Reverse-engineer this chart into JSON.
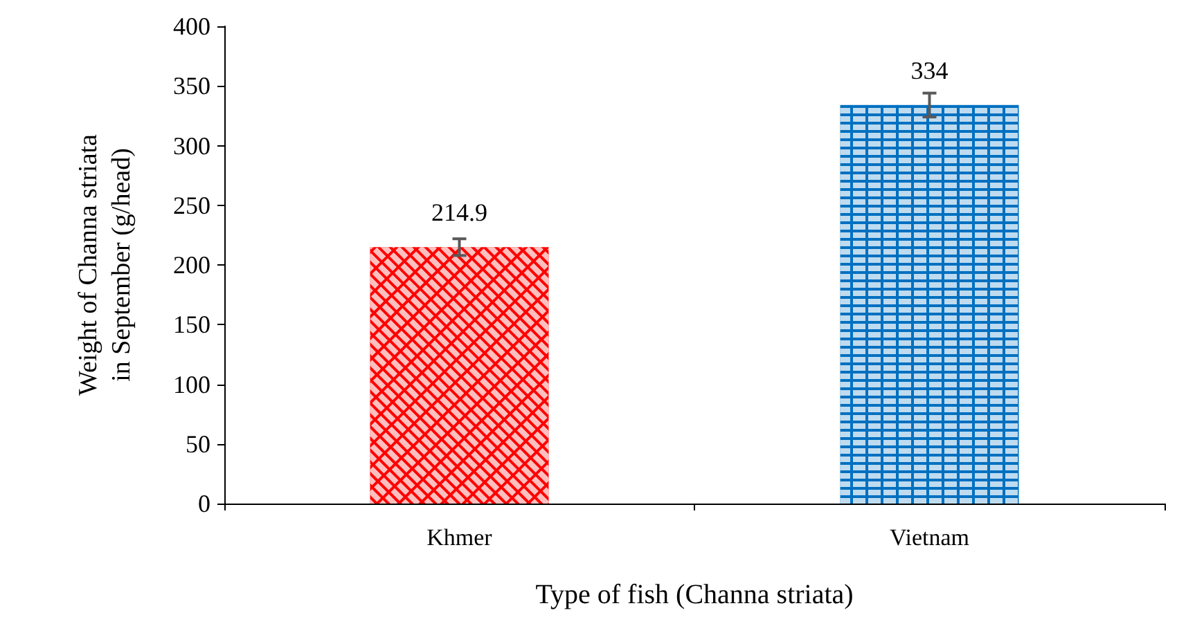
{
  "chart_data": {
    "type": "bar",
    "categories": [
      "Khmer",
      "Vietnam"
    ],
    "values": [
      214.9,
      334
    ],
    "colors": [
      "#ff0000",
      "#0070c0"
    ],
    "errors": [
      7,
      10
    ],
    "data_labels": true,
    "xlabel": "Type of fish (Channa striata)",
    "ylabel": "Weight of Channa striata in September (g/head)",
    "ylim": [
      0,
      400
    ],
    "yticks": [
      0,
      50,
      100,
      150,
      200,
      250,
      300,
      350,
      400
    ],
    "grid": false
  }
}
